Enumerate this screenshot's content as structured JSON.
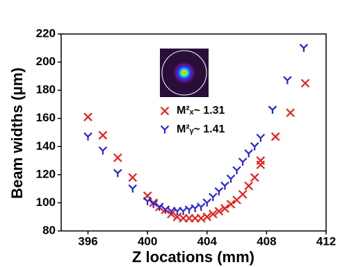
{
  "chart_data": {
    "type": "scatter",
    "x_label": "Z locations (mm)",
    "y_label": "Beam widths (μm)",
    "xlim": [
      394.2,
      412
    ],
    "ylim": [
      80,
      220
    ],
    "xticks": [
      396,
      400,
      404,
      408,
      412
    ],
    "yticks": [
      80,
      100,
      120,
      140,
      160,
      180,
      200,
      220
    ],
    "series": [
      {
        "name": "M²ₓ~ 1.31",
        "color": "#e8201c",
        "marker": "x",
        "x": [
          396,
          397,
          398,
          399,
          400,
          400.4,
          400.8,
          401.2,
          401.6,
          402,
          402.4,
          402.8,
          403.2,
          403.6,
          404,
          404.4,
          404.8,
          405.2,
          405.6,
          406,
          406.4,
          406.8,
          407.2,
          407.6,
          407.6,
          408.6,
          409.6,
          410.6
        ],
        "values": [
          161,
          148,
          132,
          118,
          105,
          100,
          97,
          95,
          92,
          90,
          89,
          89,
          89,
          89,
          90,
          92,
          94,
          96,
          99,
          102,
          106,
          112,
          118,
          127,
          130,
          147,
          164,
          185
        ]
      },
      {
        "name": "M²ᵧ~ 1.41",
        "color": "#2424d8",
        "marker": "y",
        "x": [
          396,
          397,
          398,
          399,
          400,
          400.4,
          400.8,
          401.2,
          401.6,
          402,
          402.4,
          402.8,
          403.2,
          403.6,
          404,
          404.4,
          404.8,
          405.2,
          405.6,
          406,
          406.4,
          406.8,
          407.2,
          407.6,
          408.4,
          409.4,
          410.5
        ],
        "values": [
          147,
          137,
          121,
          110,
          101,
          99,
          97,
          95,
          94,
          94,
          94,
          95,
          96,
          97,
          100,
          104,
          108,
          112,
          117,
          123,
          129,
          135,
          140,
          146,
          166,
          187,
          210
        ]
      }
    ]
  }
}
